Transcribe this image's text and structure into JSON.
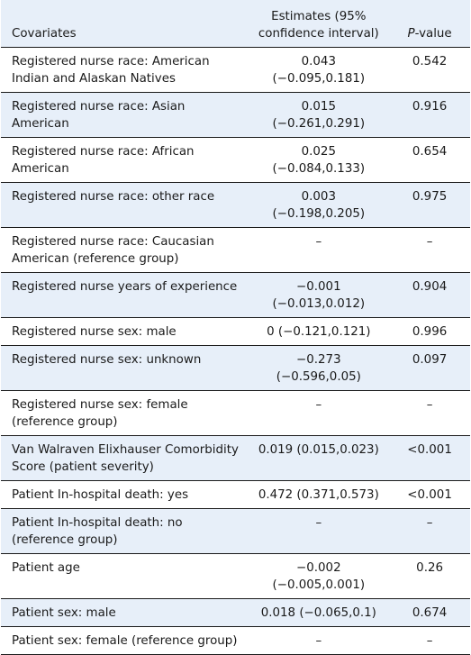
{
  "table": {
    "headers": {
      "covariates": "Covariates",
      "estimates": "Estimates (95% confidence interval)",
      "p_italic": "P",
      "p_rest": "-value"
    },
    "rows": [
      {
        "covariate": "Registered nurse race: American Indian and Alaskan Natives",
        "estimate": "0.043 (−0.095,0.181)",
        "p": "0.542"
      },
      {
        "covariate": "Registered nurse race: Asian American",
        "estimate": "0.015 (−0.261,0.291)",
        "p": "0.916"
      },
      {
        "covariate": "Registered nurse race: African American",
        "estimate": "0.025 (−0.084,0.133)",
        "p": "0.654"
      },
      {
        "covariate": "Registered nurse race: other race",
        "estimate": "0.003 (−0.198,0.205)",
        "p": "0.975"
      },
      {
        "covariate": "Registered nurse race: Caucasian American (reference group)",
        "estimate": "–",
        "p": "–"
      },
      {
        "covariate": "Registered nurse years of experience",
        "estimate": "−0.001 (−0.013,0.012)",
        "p": "0.904"
      },
      {
        "covariate": "Registered nurse sex: male",
        "estimate": "0 (−0.121,0.121)",
        "p": "0.996"
      },
      {
        "covariate": "Registered nurse sex: unknown",
        "estimate": "−0.273 (−0.596,0.05)",
        "p": "0.097"
      },
      {
        "covariate": "Registered nurse sex: female (reference group)",
        "estimate": "–",
        "p": "–"
      },
      {
        "covariate": "Van Walraven Elixhauser Comorbidity Score (patient severity)",
        "estimate": "0.019 (0.015,0.023)",
        "p": "<0.001"
      },
      {
        "covariate": "Patient In-hospital death: yes",
        "estimate": "0.472 (0.371,0.573)",
        "p": "<0.001"
      },
      {
        "covariate": "Patient In-hospital death: no (reference group)",
        "estimate": "–",
        "p": "–"
      },
      {
        "covariate": "Patient age",
        "estimate": "−0.002 (−0.005,0.001)",
        "p": "0.26"
      },
      {
        "covariate": "Patient sex: male",
        "estimate": "0.018 (−0.065,0.1)",
        "p": "0.674"
      },
      {
        "covariate": "Patient sex: female (reference group)",
        "estimate": "–",
        "p": "–"
      }
    ]
  }
}
